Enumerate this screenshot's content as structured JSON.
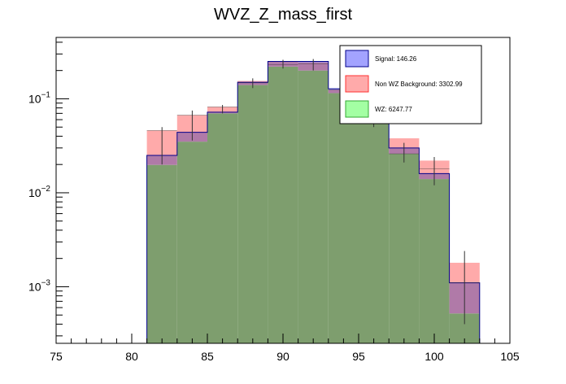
{
  "chart_data": {
    "type": "bar",
    "title": "WVZ_Z_mass_first",
    "xlabel": "",
    "ylabel": "",
    "xlim": [
      75,
      105
    ],
    "ylim": [
      0.00025,
      0.45
    ],
    "yscale": "log",
    "grid": false,
    "legend_position": "top-right",
    "x_ticks": [
      75,
      80,
      85,
      90,
      95,
      100,
      105
    ],
    "x_tick_labels": [
      "75",
      "80",
      "85",
      "90",
      "95",
      "100",
      "105"
    ],
    "y_ticks": [
      0.001,
      0.01,
      0.1
    ],
    "y_tick_labels": [
      {
        "base": "10",
        "exp": "−3"
      },
      {
        "base": "10",
        "exp": "−2"
      },
      {
        "base": "10",
        "exp": "−1"
      }
    ],
    "bin_edges": [
      81,
      83,
      85,
      87,
      89,
      91,
      93,
      95,
      97,
      99,
      101,
      103
    ],
    "series": [
      {
        "name": "Signal: 146.26",
        "legend_label": "Signal: 146.26",
        "fill": "#a3a3ff",
        "values": [
          0.025,
          0.044,
          0.072,
          0.15,
          0.25,
          0.25,
          0.128,
          0.071,
          0.03,
          0.016,
          0.0011
        ]
      },
      {
        "name": "Non WZ Background: 3302.99",
        "legend_label": "Non WZ Background: 3302.99",
        "fill": "#ffaaaa",
        "values": [
          0.046,
          0.067,
          0.082,
          0.155,
          0.25,
          0.245,
          0.125,
          0.08,
          0.038,
          0.022,
          0.0018
        ]
      },
      {
        "name": "WZ: 6247.77",
        "legend_label": "WZ: 6247.77",
        "fill": "#a3ffa3",
        "values": [
          0.0198,
          0.035,
          0.07,
          0.14,
          0.22,
          0.2,
          0.115,
          0.058,
          0.026,
          0.014,
          0.00052
        ]
      }
    ],
    "overlap_fills": {
      "signal_background": "#b07aa8",
      "signal_wz": "#4fa99a",
      "background_wz": "#a6b87a",
      "all": "#7e9e6e"
    },
    "error_bars": {
      "x": [
        82,
        84,
        86,
        88,
        90,
        92,
        94,
        96,
        98,
        100,
        102
      ],
      "y": [
        0.046,
        0.067,
        0.082,
        0.148,
        0.23,
        0.235,
        0.125,
        0.058,
        0.026,
        0.018,
        0.0011
      ],
      "lo": [
        0.02,
        0.036,
        0.07,
        0.13,
        0.21,
        0.2,
        0.11,
        0.05,
        0.021,
        0.012,
        0.0004
      ],
      "hi": [
        0.05,
        0.075,
        0.086,
        0.165,
        0.26,
        0.265,
        0.14,
        0.09,
        0.034,
        0.024,
        0.0024
      ]
    }
  }
}
